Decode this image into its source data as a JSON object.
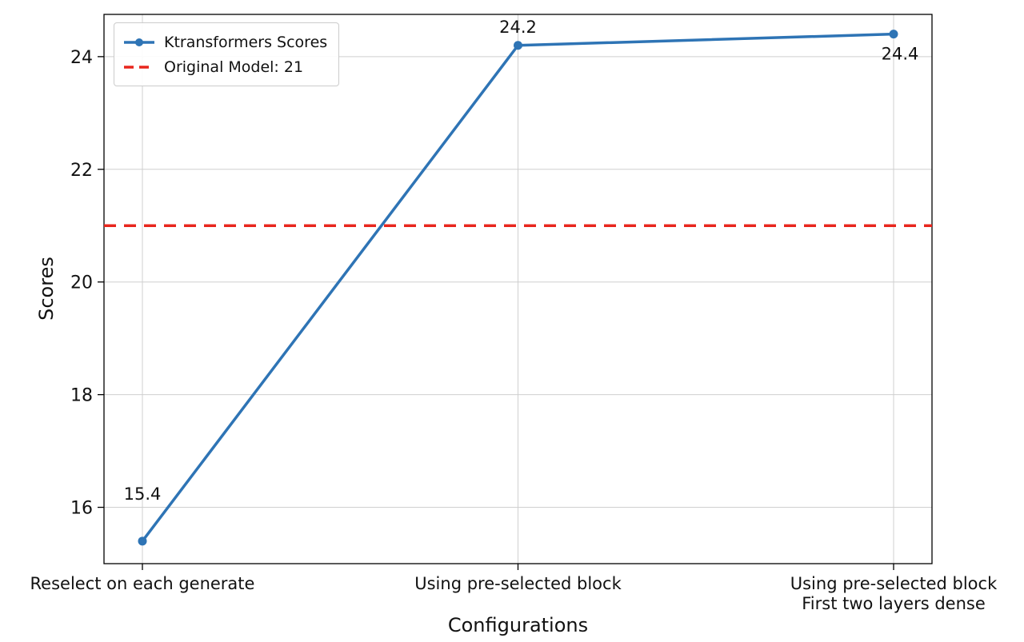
{
  "chart_data": {
    "type": "line",
    "title": "",
    "xlabel": "Configurations",
    "ylabel": "Scores",
    "categories": [
      "Reselect on each generate",
      "Using pre-selected block",
      "Using pre-selected block\nFirst two layers dense"
    ],
    "series": [
      {
        "name": "Ktransformers Scores",
        "values": [
          15.4,
          24.2,
          24.4
        ],
        "color": "#2e74b5",
        "marker": "circle",
        "point_labels": [
          "15.4",
          "24.2",
          "24.4"
        ]
      }
    ],
    "reference_line": {
      "label": "Original Model: 21",
      "value": 21,
      "color": "#e8261d",
      "style": "dashed"
    },
    "yticks": [
      "16",
      "18",
      "20",
      "22",
      "24"
    ],
    "ytick_values": [
      16,
      18,
      20,
      22,
      24
    ],
    "ylim": [
      15.0,
      24.75
    ],
    "grid": true,
    "legend_position": "upper left"
  }
}
